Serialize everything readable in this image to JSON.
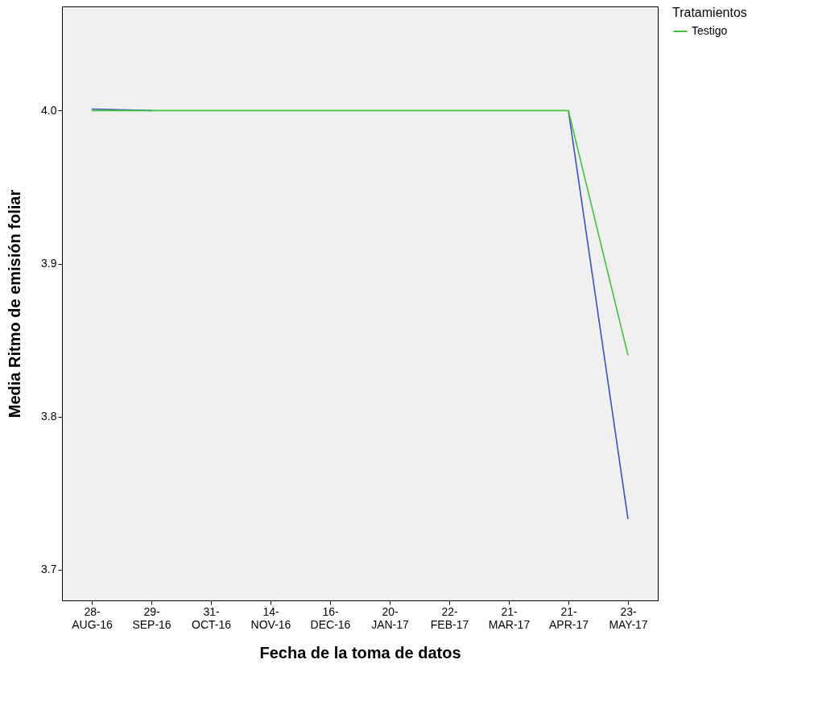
{
  "chart_data": {
    "type": "line",
    "xlabel": "Fecha de la toma de datos",
    "ylabel": "Media Ritmo de emisión foliar",
    "legend_title": "Tratamientos",
    "legend": "top right",
    "grid": false,
    "categories": [
      "28-AUG-16",
      "29-SEP-16",
      "31-OCT-16",
      "14-NOV-16",
      "16-DEC-16",
      "20-JAN-17",
      "22-FEB-17",
      "21-MAR-17",
      "21-APR-17",
      "23-MAY-17"
    ],
    "ylim": [
      3.68,
      4.068
    ],
    "yticks": [
      3.7,
      3.8,
      3.9,
      {
        "value": 4.0,
        "label": "4.0"
      }
    ],
    "series": [
      {
        "color": "#3c50c0",
        "values": [
          4.001,
          4.0,
          null,
          null,
          null,
          null,
          null,
          null,
          4.0,
          3.733
        ]
      },
      {
        "name": "Testigo",
        "color": "#3dc23d",
        "values": [
          4.0,
          4.0,
          4.0,
          4.0,
          4.0,
          4.0,
          4.0,
          4.0,
          4.0,
          3.84
        ]
      }
    ]
  }
}
